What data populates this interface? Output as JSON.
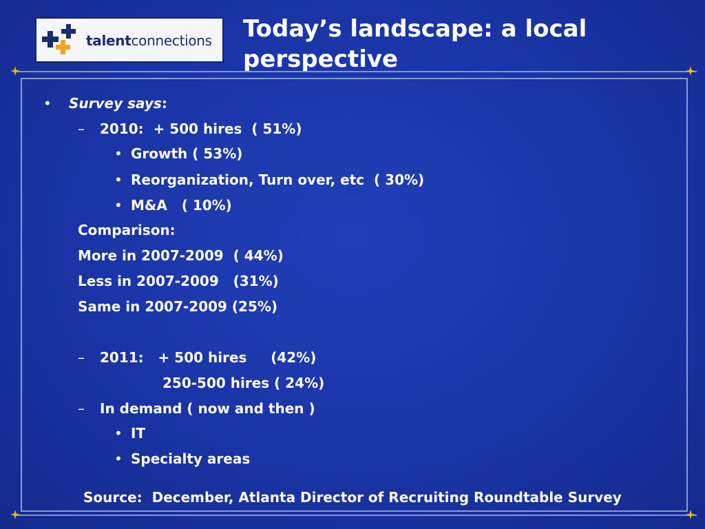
{
  "logo": {
    "text_part1": "talent",
    "text_part2": "connections",
    "icon": "plus-cluster-icon",
    "colors": {
      "navy": "#1b2d6e",
      "gold": "#f2a51a"
    }
  },
  "slide": {
    "title_line1": "Today’s landscape: a local",
    "title_line2": "perspective",
    "heading_bullet": "•",
    "heading_italic": "Survey says",
    "heading_colon": ":",
    "dash": "–",
    "dot": "•",
    "items": {
      "y2010": "2010:  + 500 hires  ( 51%)",
      "growth": "Growth ( 53%)",
      "reorg": "Reorganization, Turn over, etc  ( 30%)",
      "ma": "M&A   ( 10%)",
      "comparison": "Comparison:",
      "more": "More in 2007-2009  ( 44%)",
      "less": "Less in 2007-2009   (31%)",
      "same": "Same in 2007-2009 (25%)",
      "y2011": "2011:   + 500 hires     (42%)",
      "y2011b": "250-500 hires ( 24%)",
      "demand": "In demand ( now and then )",
      "it": "IT",
      "specialty": "Specialty areas"
    },
    "source": "Source:  December, Atlanta Director of Recruiting Roundtable Survey"
  },
  "theme": {
    "background": "#1a34a6",
    "frame": "#8a9bd8",
    "sparkle": "#f2b21c"
  }
}
